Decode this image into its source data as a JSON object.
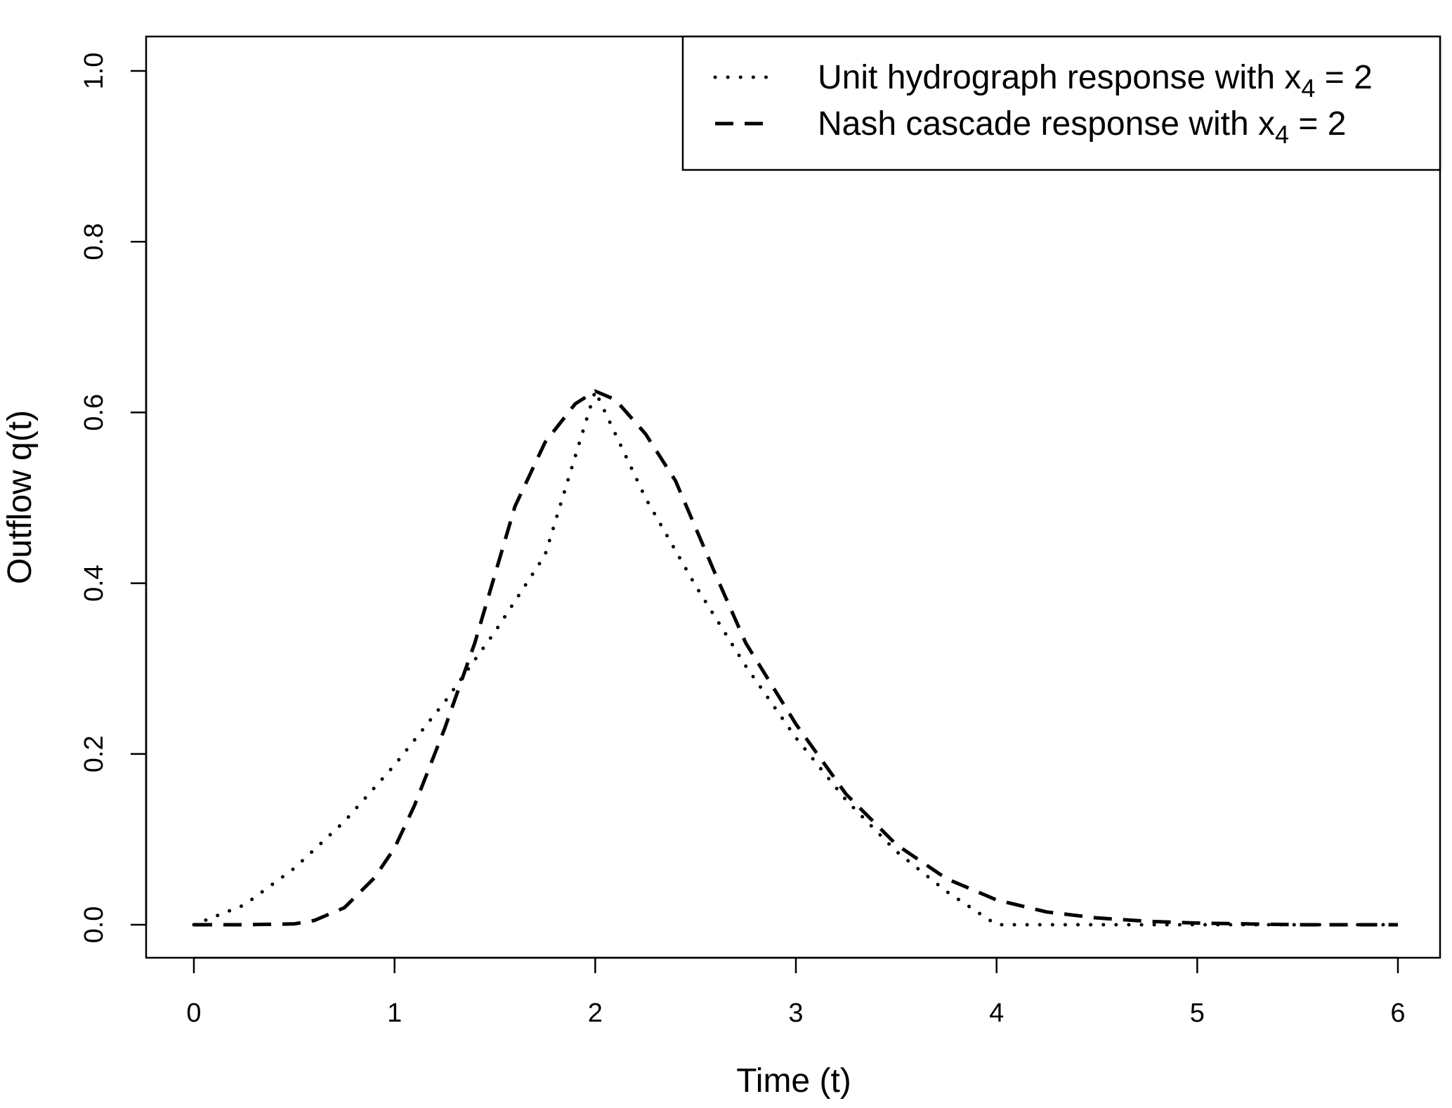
{
  "chart_data": {
    "type": "line",
    "xlabel": "Time (t)",
    "ylabel": "Outflow q(t)",
    "xlim": [
      0,
      6
    ],
    "ylim": [
      0,
      1
    ],
    "xticks": [
      "0",
      "1",
      "2",
      "3",
      "4",
      "5",
      "6"
    ],
    "yticks": [
      "0.0",
      "0.2",
      "0.4",
      "0.6",
      "0.8",
      "1.0"
    ],
    "grid": false,
    "legend_position": "top-right",
    "series": [
      {
        "name": "Unit hydrograph response with x4 = 2",
        "legend": {
          "main": "Unit hydrograph response with x",
          "sub": "4",
          "tail": " = 2"
        },
        "line_style": "dotted",
        "color": "#000000",
        "x": [
          0,
          0.25,
          0.5,
          0.75,
          1,
          1.25,
          1.5,
          1.75,
          2,
          2.25,
          2.5,
          2.75,
          3,
          3.25,
          3.5,
          3.75,
          4,
          4.5,
          5,
          5.5,
          6
        ],
        "y": [
          0,
          0.023,
          0.066,
          0.121,
          0.187,
          0.261,
          0.343,
          0.433,
          0.625,
          0.5,
          0.397,
          0.303,
          0.219,
          0.146,
          0.086,
          0.039,
          0,
          0,
          0,
          0,
          0
        ]
      },
      {
        "name": "Nash cascade response with x4 = 2",
        "legend": {
          "main": "Nash cascade response with x",
          "sub": "4",
          "tail": " = 2"
        },
        "line_style": "dashed",
        "color": "#000000",
        "x": [
          0,
          0.25,
          0.5,
          0.6,
          0.75,
          0.9,
          1,
          1.1,
          1.25,
          1.4,
          1.5,
          1.6,
          1.75,
          1.9,
          2,
          2.1,
          2.25,
          2.4,
          2.5,
          2.6,
          2.75,
          3,
          3.25,
          3.5,
          3.75,
          4,
          4.25,
          4.5,
          4.75,
          5,
          5.25,
          5.5,
          5.75,
          6
        ],
        "y": [
          0,
          0,
          0.001,
          0.005,
          0.02,
          0.055,
          0.09,
          0.14,
          0.23,
          0.33,
          0.41,
          0.49,
          0.565,
          0.61,
          0.625,
          0.615,
          0.575,
          0.52,
          0.465,
          0.41,
          0.33,
          0.235,
          0.153,
          0.094,
          0.054,
          0.029,
          0.015,
          0.008,
          0.004,
          0.002,
          0.001,
          0,
          0,
          0
        ]
      }
    ]
  }
}
